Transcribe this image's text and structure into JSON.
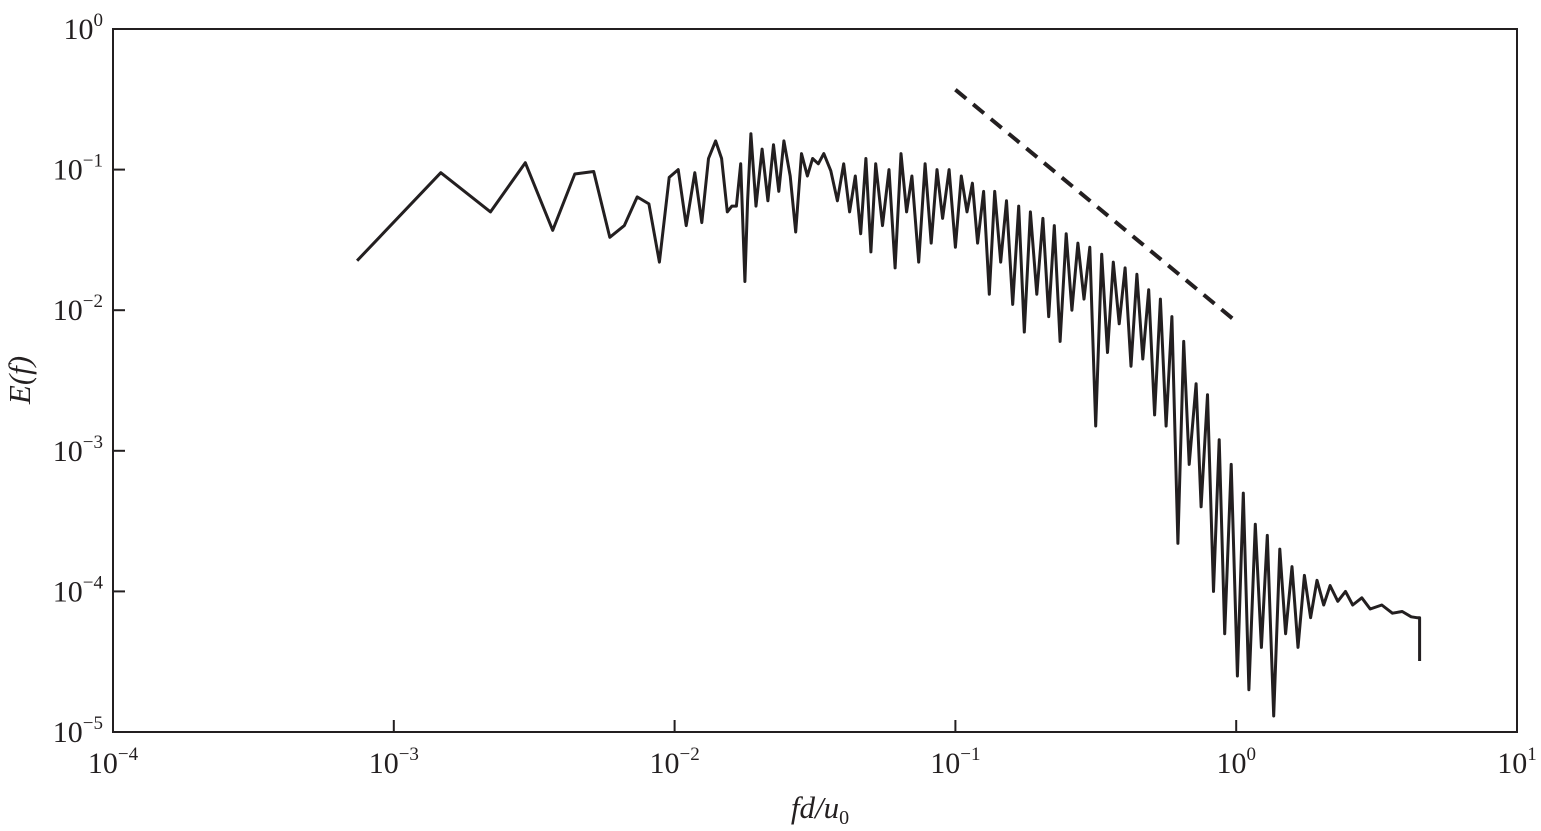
{
  "chart_data": {
    "type": "line",
    "title": "",
    "xlabel": {
      "main": "fd/u",
      "subscript": "0"
    },
    "ylabel": "E(f)",
    "x_scale": "log",
    "y_scale": "log",
    "xlim": [
      0.0001,
      10
    ],
    "ylim": [
      1e-05,
      1
    ],
    "grid": false,
    "legend": "none",
    "line_color": "#231f20",
    "x_ticks": [
      {
        "base": "10",
        "exp": "−4",
        "value": 0.0001
      },
      {
        "base": "10",
        "exp": "−3",
        "value": 0.001
      },
      {
        "base": "10",
        "exp": "−2",
        "value": 0.01
      },
      {
        "base": "10",
        "exp": "−1",
        "value": 0.1
      },
      {
        "base": "10",
        "exp": "0",
        "value": 1
      },
      {
        "base": "10",
        "exp": "1",
        "value": 10
      }
    ],
    "y_ticks": [
      {
        "base": "10",
        "exp": "0",
        "value": 1
      },
      {
        "base": "10",
        "exp": "−1",
        "value": 0.1
      },
      {
        "base": "10",
        "exp": "−2",
        "value": 0.01
      },
      {
        "base": "10",
        "exp": "−3",
        "value": 0.001
      },
      {
        "base": "10",
        "exp": "−4",
        "value": 0.0001
      },
      {
        "base": "10",
        "exp": "−5",
        "value": 1e-05
      }
    ],
    "series": [
      {
        "style": "solid",
        "points": [
          [
            0.00074,
            0.0225
          ],
          [
            0.00147,
            0.095
          ],
          [
            0.00221,
            0.05
          ],
          [
            0.00294,
            0.112
          ],
          [
            0.00368,
            0.037
          ],
          [
            0.00441,
            0.093
          ],
          [
            0.00515,
            0.097
          ],
          [
            0.00588,
            0.033
          ],
          [
            0.00662,
            0.04
          ],
          [
            0.00736,
            0.064
          ],
          [
            0.0081,
            0.057
          ],
          [
            0.00883,
            0.022
          ],
          [
            0.00957,
            0.088
          ],
          [
            0.0103,
            0.1
          ],
          [
            0.011,
            0.04
          ],
          [
            0.0118,
            0.095
          ],
          [
            0.0125,
            0.042
          ],
          [
            0.0132,
            0.12
          ],
          [
            0.014,
            0.16
          ],
          [
            0.0147,
            0.12
          ],
          [
            0.0154,
            0.05
          ],
          [
            0.016,
            0.055
          ],
          [
            0.0166,
            0.055
          ],
          [
            0.0172,
            0.11
          ],
          [
            0.0178,
            0.016
          ],
          [
            0.0182,
            0.06
          ],
          [
            0.0187,
            0.18
          ],
          [
            0.0195,
            0.055
          ],
          [
            0.0205,
            0.14
          ],
          [
            0.0215,
            0.06
          ],
          [
            0.0225,
            0.15
          ],
          [
            0.0235,
            0.07
          ],
          [
            0.0245,
            0.16
          ],
          [
            0.0258,
            0.09
          ],
          [
            0.027,
            0.036
          ],
          [
            0.0283,
            0.13
          ],
          [
            0.0297,
            0.09
          ],
          [
            0.031,
            0.12
          ],
          [
            0.0325,
            0.11
          ],
          [
            0.034,
            0.13
          ],
          [
            0.036,
            0.098
          ],
          [
            0.038,
            0.06
          ],
          [
            0.04,
            0.11
          ],
          [
            0.042,
            0.05
          ],
          [
            0.044,
            0.09
          ],
          [
            0.046,
            0.035
          ],
          [
            0.048,
            0.12
          ],
          [
            0.05,
            0.026
          ],
          [
            0.052,
            0.11
          ],
          [
            0.055,
            0.04
          ],
          [
            0.058,
            0.1
          ],
          [
            0.061,
            0.02
          ],
          [
            0.064,
            0.13
          ],
          [
            0.067,
            0.05
          ],
          [
            0.07,
            0.09
          ],
          [
            0.074,
            0.022
          ],
          [
            0.078,
            0.11
          ],
          [
            0.082,
            0.03
          ],
          [
            0.086,
            0.1
          ],
          [
            0.09,
            0.045
          ],
          [
            0.095,
            0.1
          ],
          [
            0.1,
            0.028
          ],
          [
            0.105,
            0.09
          ],
          [
            0.11,
            0.05
          ],
          [
            0.115,
            0.08
          ],
          [
            0.12,
            0.03
          ],
          [
            0.126,
            0.07
          ],
          [
            0.132,
            0.013
          ],
          [
            0.138,
            0.07
          ],
          [
            0.145,
            0.022
          ],
          [
            0.152,
            0.06
          ],
          [
            0.16,
            0.011
          ],
          [
            0.168,
            0.055
          ],
          [
            0.176,
            0.007
          ],
          [
            0.185,
            0.05
          ],
          [
            0.195,
            0.013
          ],
          [
            0.205,
            0.045
          ],
          [
            0.215,
            0.009
          ],
          [
            0.225,
            0.04
          ],
          [
            0.236,
            0.006
          ],
          [
            0.248,
            0.035
          ],
          [
            0.26,
            0.01
          ],
          [
            0.273,
            0.03
          ],
          [
            0.287,
            0.012
          ],
          [
            0.301,
            0.028
          ],
          [
            0.316,
            0.0015
          ],
          [
            0.332,
            0.025
          ],
          [
            0.348,
            0.005
          ],
          [
            0.365,
            0.022
          ],
          [
            0.383,
            0.008
          ],
          [
            0.402,
            0.02
          ],
          [
            0.422,
            0.004
          ],
          [
            0.443,
            0.018
          ],
          [
            0.465,
            0.0045
          ],
          [
            0.488,
            0.014
          ],
          [
            0.512,
            0.0018
          ],
          [
            0.537,
            0.012
          ],
          [
            0.563,
            0.0015
          ],
          [
            0.59,
            0.009
          ],
          [
            0.62,
            0.00022
          ],
          [
            0.65,
            0.006
          ],
          [
            0.68,
            0.0008
          ],
          [
            0.72,
            0.003
          ],
          [
            0.75,
            0.0004
          ],
          [
            0.79,
            0.0025
          ],
          [
            0.83,
            0.0001
          ],
          [
            0.87,
            0.0012
          ],
          [
            0.91,
            5e-05
          ],
          [
            0.96,
            0.0008
          ],
          [
            1.01,
            2.5e-05
          ],
          [
            1.06,
            0.0005
          ],
          [
            1.11,
            2e-05
          ],
          [
            1.17,
            0.0003
          ],
          [
            1.23,
            4e-05
          ],
          [
            1.29,
            0.00025
          ],
          [
            1.36,
            1.3e-05
          ],
          [
            1.43,
            0.0002
          ],
          [
            1.5,
            5e-05
          ],
          [
            1.58,
            0.00015
          ],
          [
            1.66,
            4e-05
          ],
          [
            1.75,
            0.00013
          ],
          [
            1.84,
            6.5e-05
          ],
          [
            1.94,
            0.00012
          ],
          [
            2.05,
            8e-05
          ],
          [
            2.16,
            0.00011
          ],
          [
            2.3,
            8.5e-05
          ],
          [
            2.45,
            0.0001
          ],
          [
            2.6,
            8e-05
          ],
          [
            2.8,
            9e-05
          ],
          [
            3.0,
            7.5e-05
          ],
          [
            3.3,
            8e-05
          ],
          [
            3.6,
            7e-05
          ],
          [
            3.9,
            7.2e-05
          ],
          [
            4.2,
            6.6e-05
          ],
          [
            4.4,
            6.5e-05
          ],
          [
            4.5,
            6.5e-05
          ],
          [
            4.5,
            3.2e-05
          ]
        ]
      },
      {
        "style": "dashed",
        "points": [
          [
            0.1,
            0.37
          ],
          [
            1,
            0.0083
          ]
        ]
      }
    ]
  }
}
